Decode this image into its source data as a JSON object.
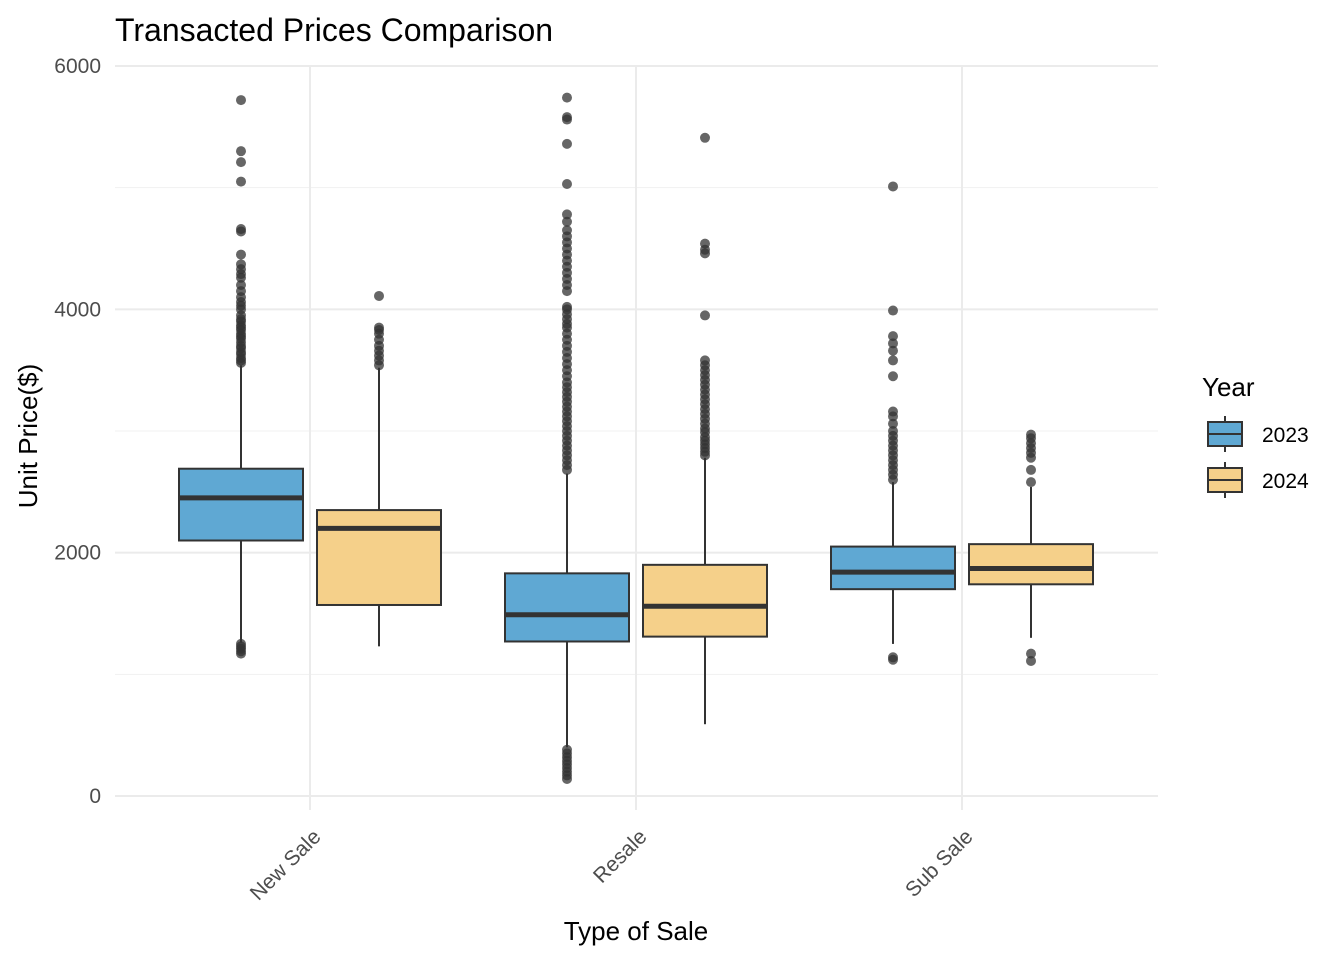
{
  "chart_data": {
    "type": "boxplot",
    "title": "Transacted Prices Comparison",
    "xlabel": "Type of Sale",
    "ylabel": "Unit Price($)",
    "ylim": [
      0,
      6000
    ],
    "yticks": [
      0,
      2000,
      4000,
      6000
    ],
    "y_minor_gridlines": [
      1000,
      3000,
      5000
    ],
    "grid": true,
    "categories": [
      "New Sale",
      "Resale",
      "Sub Sale"
    ],
    "legend": {
      "title": "Year",
      "placement": "right"
    },
    "series": [
      {
        "name": "2023",
        "color": "#5FA8D3",
        "boxes": [
          {
            "whisker_low": 1260,
            "q1": 2100,
            "median": 2450,
            "q3": 2690,
            "whisker_high": 3540,
            "outliers": [
              1170,
              1190,
              1210,
              1230,
              1250,
              3560,
              3580,
              3600,
              3630,
              3650,
              3680,
              3700,
              3730,
              3760,
              3780,
              3800,
              3830,
              3850,
              3870,
              3900,
              3920,
              3950,
              4000,
              4030,
              4060,
              4100,
              4150,
              4200,
              4260,
              4290,
              4330,
              4370,
              4450,
              4640,
              4660,
              5050,
              5210,
              5300,
              5720
            ]
          },
          {
            "whisker_low": 400,
            "q1": 1270,
            "median": 1490,
            "q3": 1830,
            "whisker_high": 2650,
            "outliers": [
              140,
              170,
              200,
              230,
              260,
              290,
              320,
              350,
              380,
              2680,
              2720,
              2760,
              2800,
              2840,
              2880,
              2920,
              2960,
              3000,
              3040,
              3080,
              3120,
              3160,
              3200,
              3240,
              3280,
              3320,
              3360,
              3400,
              3450,
              3500,
              3550,
              3600,
              3650,
              3700,
              3750,
              3800,
              3850,
              3880,
              3920,
              3960,
              4000,
              4020,
              4150,
              4200,
              4250,
              4300,
              4350,
              4400,
              4450,
              4500,
              4550,
              4600,
              4650,
              4720,
              4780,
              5030,
              5360,
              5560,
              5580,
              5740
            ]
          },
          {
            "whisker_low": 1250,
            "q1": 1700,
            "median": 1840,
            "q3": 2050,
            "whisker_high": 2580,
            "outliers": [
              1120,
              1140,
              2600,
              2640,
              2680,
              2720,
              2760,
              2800,
              2840,
              2880,
              2920,
              2960,
              3000,
              3060,
              3120,
              3160,
              3450,
              3580,
              3660,
              3720,
              3780,
              3990,
              5010
            ]
          }
        ]
      },
      {
        "name": "2024",
        "color": "#F5D08A",
        "boxes": [
          {
            "whisker_low": 1230,
            "q1": 1570,
            "median": 2200,
            "q3": 2350,
            "whisker_high": 3520,
            "outliers": [
              3540,
              3580,
              3620,
              3660,
              3700,
              3750,
              3800,
              3830,
              3850,
              4110
            ]
          },
          {
            "whisker_low": 590,
            "q1": 1310,
            "median": 1560,
            "q3": 1900,
            "whisker_high": 2780,
            "outliers": [
              2800,
              2830,
              2860,
              2890,
              2920,
              2950,
              2990,
              3020,
              3060,
              3100,
              3140,
              3180,
              3220,
              3260,
              3300,
              3340,
              3380,
              3420,
              3460,
              3500,
              3540,
              3580,
              3950,
              4460,
              4490,
              4540,
              5410
            ]
          },
          {
            "whisker_low": 1300,
            "q1": 1740,
            "median": 1870,
            "q3": 2070,
            "whisker_high": 2540,
            "outliers": [
              1110,
              1170,
              2580,
              2680,
              2780,
              2820,
              2860,
              2900,
              2940,
              2970
            ]
          }
        ]
      }
    ]
  }
}
